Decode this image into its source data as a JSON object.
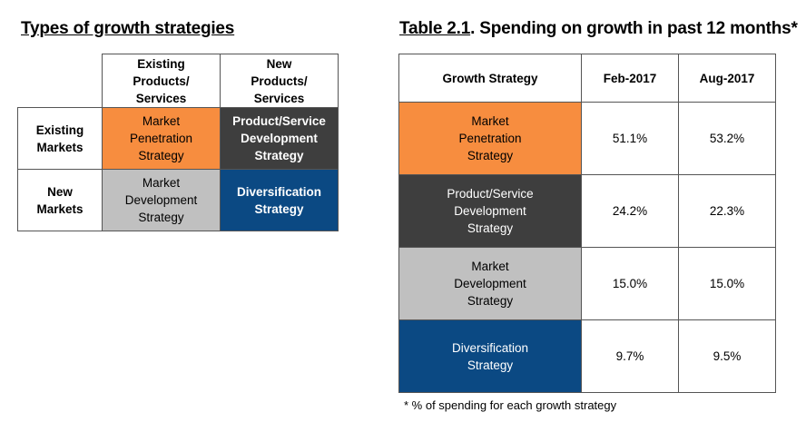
{
  "left_title": "Types of growth strategies",
  "right_title": {
    "underlined": "Table 2.1",
    "rest": ". Spending on growth in past 12 months*"
  },
  "matrix": {
    "col_headers": [
      "Existing\nProducts/\nServices",
      "New\nProducts/\nServices"
    ],
    "rows": [
      {
        "header": "Existing\nMarkets",
        "cells": [
          "Market\nPenetration\nStrategy",
          "Product/Service\nDevelopment\nStrategy"
        ]
      },
      {
        "header": "New\nMarkets",
        "cells": [
          "Market\nDevelopment\nStrategy",
          "Diversification\nStrategy"
        ]
      }
    ]
  },
  "spending_table": {
    "headers": [
      "Growth Strategy",
      "Feb-2017",
      "Aug-2017"
    ],
    "rows": [
      {
        "strategy": "Market\nPenetration\nStrategy",
        "feb": "51.1%",
        "aug": "53.2%"
      },
      {
        "strategy": "Product/Service\nDevelopment\nStrategy",
        "feb": "24.2%",
        "aug": "22.3%"
      },
      {
        "strategy": "Market\nDevelopment\nStrategy",
        "feb": "15.0%",
        "aug": "15.0%"
      },
      {
        "strategy": "Diversification\nStrategy",
        "feb": "9.7%",
        "aug": "9.5%"
      }
    ]
  },
  "footnote": "* % of spending for each growth strategy",
  "colors": {
    "market_penetration": "#f78d3f",
    "product_development": "#3e3e3e",
    "market_development": "#c0c0c0",
    "diversification": "#0b4983"
  }
}
